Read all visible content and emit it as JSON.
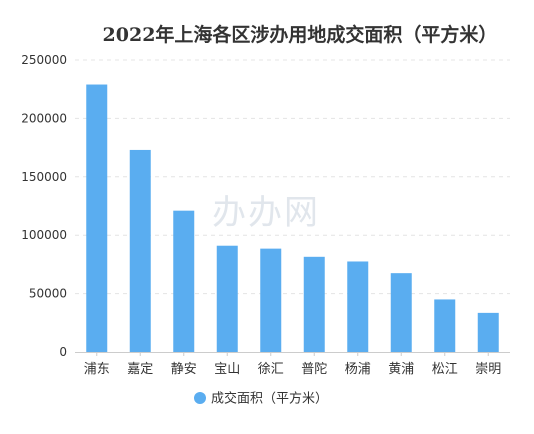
{
  "chart_data": {
    "type": "bar",
    "title": "2022年上海各区涉办用地成交面积（平方米）",
    "categories": [
      "浦东",
      "嘉定",
      "静安",
      "宝山",
      "徐汇",
      "普陀",
      "杨浦",
      "黄浦",
      "松江",
      "崇明"
    ],
    "series": [
      {
        "name": "成交面积（平方米）",
        "values": [
          229000,
          173000,
          121000,
          91000,
          88500,
          81500,
          77500,
          67500,
          45000,
          33500
        ],
        "color": "#5aadf0"
      }
    ],
    "ylim": [
      0,
      250000
    ],
    "yticks": [
      0,
      50000,
      100000,
      150000,
      200000,
      250000
    ],
    "grid": true,
    "legend_position": "bottom-center",
    "xlabel": "",
    "ylabel": ""
  },
  "watermark": "办办网"
}
